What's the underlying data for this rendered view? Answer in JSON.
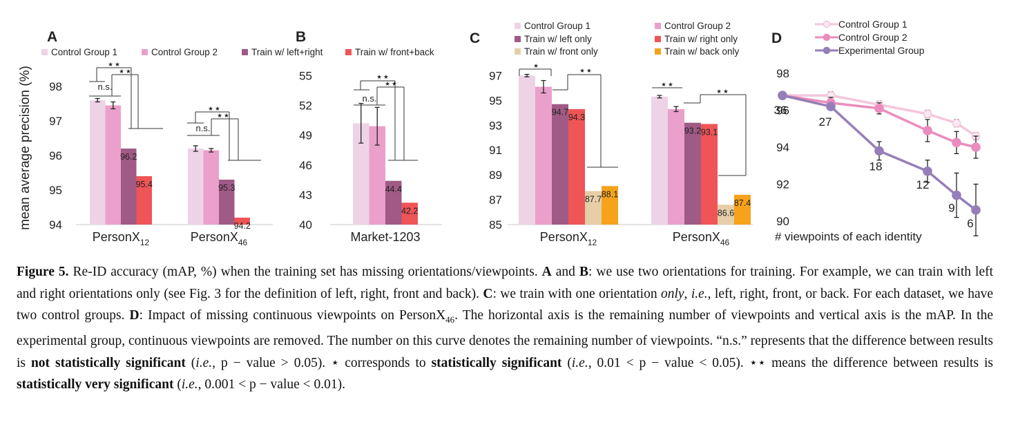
{
  "figure_label": "Figure 5.",
  "panels_meta": {
    "y_axis_title": "mean average precision (%)",
    "sig_ns": "n.s.",
    "sig_one": "★",
    "sig_two": "★ ★"
  },
  "colors": {
    "control1": "#eed3e6",
    "control2": "#eaa0ca",
    "train_lr": "#a05a86",
    "train_fb": "#ef5456",
    "front_only": "#e6cfa8",
    "back_only": "#f6a21b",
    "line_control1": "#f3c6dc",
    "line_control2": "#ea8cbd",
    "line_exp": "#957fb8"
  },
  "chart_data": [
    {
      "panel": "A",
      "type": "bar",
      "ylabel": "mean average precision (%)",
      "ylim": [
        94,
        98.6
      ],
      "yticks": [
        94,
        95,
        96,
        97,
        98
      ],
      "legend": [
        "Control Group 1",
        "Control Group 2",
        "Train w/ left+right",
        "Train w/ front+back"
      ],
      "groups": [
        {
          "name": "PersonX",
          "sub": "12",
          "values": [
            97.6,
            97.45,
            96.2,
            95.4
          ],
          "errors": [
            0.05,
            0.1,
            null,
            null
          ],
          "labels": [
            null,
            null,
            "96.2",
            "95.4"
          ]
        },
        {
          "name": "PersonX",
          "sub": "46",
          "values": [
            96.2,
            96.15,
            95.3,
            94.2
          ],
          "errors": [
            0.08,
            0.05,
            null,
            null
          ],
          "labels": [
            null,
            null,
            "95.3",
            "94.2"
          ]
        }
      ]
    },
    {
      "panel": "B",
      "type": "bar",
      "ylim": [
        40,
        56
      ],
      "yticks": [
        40,
        43,
        46,
        49,
        52,
        55
      ],
      "groups": [
        {
          "name": "Market-1203",
          "sub": "",
          "values": [
            50.2,
            49.9,
            44.4,
            42.2
          ],
          "errors": [
            2.0,
            1.9,
            null,
            null
          ],
          "labels": [
            null,
            null,
            "44.4",
            "42.2"
          ]
        }
      ]
    },
    {
      "panel": "C",
      "type": "bar",
      "ylim": [
        85,
        97.8
      ],
      "yticks": [
        85,
        87,
        89,
        91,
        93,
        95,
        97
      ],
      "legend": [
        "Control Group 1",
        "Control Group 2",
        "Train w/ left only",
        "Train w/ right only",
        "Train w/ front only",
        "Train w/ back only"
      ],
      "groups": [
        {
          "name": "PersonX",
          "sub": "12",
          "values": [
            97.0,
            96.1,
            94.7,
            94.3,
            87.7,
            88.1
          ],
          "errors": [
            0.1,
            0.5,
            null,
            null,
            null,
            null
          ],
          "labels": [
            null,
            null,
            "94.7",
            "94.3",
            "87.7",
            "88.1"
          ]
        },
        {
          "name": "PersonX",
          "sub": "46",
          "values": [
            95.3,
            94.3,
            93.2,
            93.1,
            86.6,
            87.4
          ],
          "errors": [
            0.1,
            0.2,
            null,
            null,
            null,
            null
          ],
          "labels": [
            null,
            null,
            "93.2",
            "93.1",
            "86.6",
            "87.4"
          ]
        }
      ]
    },
    {
      "panel": "D",
      "type": "line",
      "xlabel": "# viewpoints of each identity",
      "ylim": [
        90,
        98.6
      ],
      "yticks": [
        90,
        92,
        94,
        96,
        98
      ],
      "x_positions": [
        0,
        1,
        2,
        3,
        3.6,
        4
      ],
      "series": [
        {
          "name": "Control Group 1",
          "values": [
            96.8,
            96.8,
            96.3,
            95.8,
            95.3,
            94.6
          ],
          "errors": [
            null,
            0.2,
            0.2,
            0.2,
            0.2,
            0.2
          ]
        },
        {
          "name": "Control Group 2",
          "values": [
            96.8,
            96.4,
            96.1,
            94.9,
            94.25,
            94.0
          ],
          "errors": [
            null,
            0.3,
            0.3,
            0.6,
            0.6,
            0.6
          ]
        },
        {
          "name": "Experimental Group",
          "values": [
            96.8,
            96.2,
            93.8,
            92.7,
            91.4,
            90.6
          ],
          "errors": [
            null,
            null,
            0.5,
            0.6,
            1.2,
            1.4
          ]
        }
      ],
      "point_labels": [
        "36",
        "27",
        "18",
        "12",
        "9",
        "6"
      ]
    }
  ],
  "caption": {
    "s1": " Re-ID accuracy (mAP, %) when the training set has missing orientations/viewpoints. ",
    "A": "A",
    "and": " and ",
    "B": "B",
    "s2": ": we use two orientations for training. For example, we can train with left and right orientations only (see Fig. 3 for the definition of left, right, front and back). ",
    "C": "C",
    "s3": ": we train with one orientation ",
    "only": "only",
    "s4": ", ",
    "ie1": "i.e.",
    "s5": ", left, right, front, or back. For each dataset, we have two control groups. ",
    "D": "D",
    "s6": ": Impact of missing continuous viewpoints on PersonX",
    "s6sub": "46",
    "s7": ". The horizontal axis is the remaining number of viewpoints and vertical axis is the mAP. In the experimental group, continuous viewpoints are removed. The number on this curve denotes the remaining number of viewpoints. “n.s.” represents that the difference between results is ",
    "notsig": "not statistically significant",
    "s8": " (",
    "ie2": "i.e.",
    "s9": ", p − value > 0.05). ⋆ corresponds to ",
    "sig": "statistically significant",
    "s10": " (",
    "ie3": "i.e.",
    "s11": ", 0.01 < p − value < 0.05). ⋆⋆ means the difference between results is ",
    "verysig": "statistically very significant",
    "s12": " (",
    "ie4": "i.e.",
    "s13": ", 0.001 < p − value < 0.01)."
  }
}
